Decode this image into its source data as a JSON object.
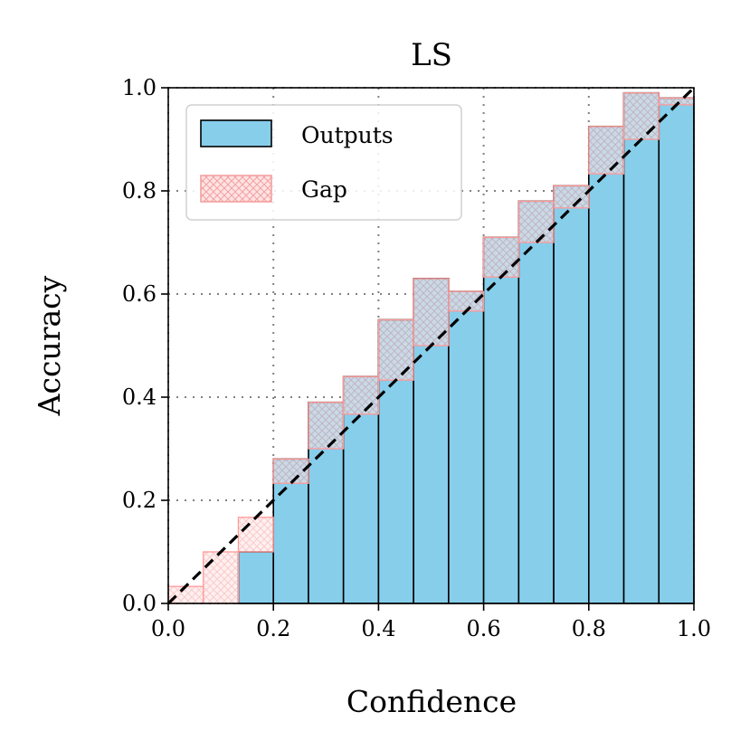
{
  "chart_data": {
    "type": "bar",
    "title": "LS",
    "xlabel": "Confidence",
    "ylabel": "Accuracy",
    "xlim": [
      0.0,
      1.0
    ],
    "ylim": [
      0.0,
      1.0
    ],
    "xticks": [
      "0.0",
      "0.2",
      "0.4",
      "0.6",
      "0.8",
      "1.0"
    ],
    "yticks": [
      "0.0",
      "0.2",
      "0.4",
      "0.6",
      "0.8",
      "1.0"
    ],
    "grid": "dotted",
    "legend_position": "upper-left",
    "bin_count": 15,
    "bin_centers": [
      0.033,
      0.1,
      0.167,
      0.233,
      0.3,
      0.367,
      0.433,
      0.5,
      0.567,
      0.633,
      0.7,
      0.767,
      0.833,
      0.9,
      0.967
    ],
    "series": [
      {
        "name": "Outputs",
        "color": "#87CEEB",
        "values": [
          0.0,
          0.0,
          0.1,
          0.28,
          0.39,
          0.44,
          0.55,
          0.63,
          0.605,
          0.71,
          0.78,
          0.81,
          0.925,
          0.99,
          0.98
        ]
      },
      {
        "name": "Gap",
        "color": "#ff9999",
        "hatch": "crosshatch"
      }
    ],
    "reference_line": {
      "style": "dashed",
      "from": [
        0.0,
        0.0
      ],
      "to": [
        1.0,
        1.0
      ],
      "color": "#000000"
    }
  }
}
